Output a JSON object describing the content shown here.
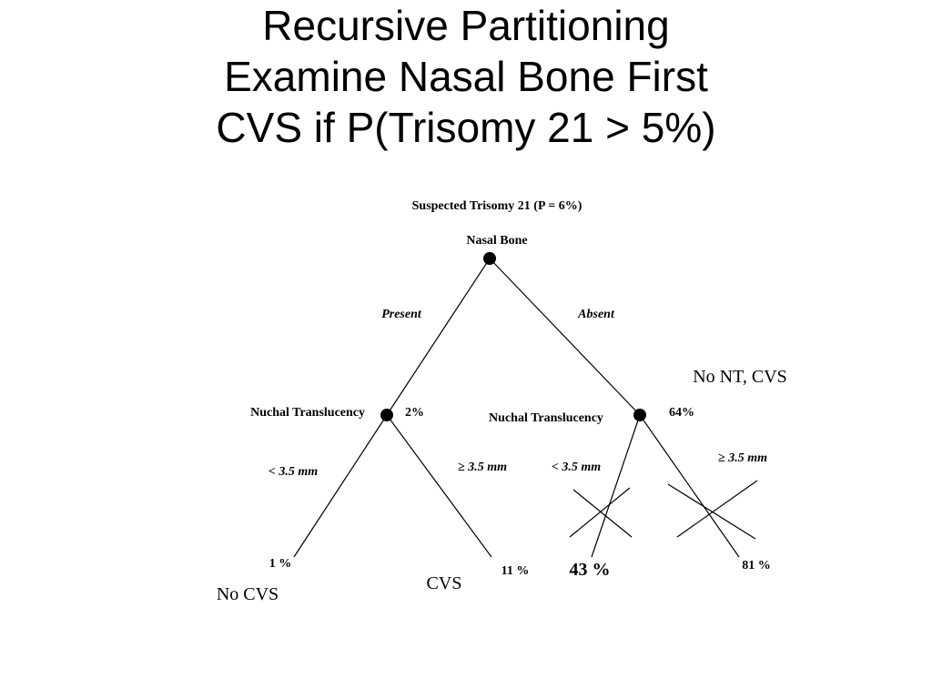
{
  "title_lines": [
    "Recursive Partitioning",
    "Examine Nasal Bone First",
    "CVS if P(Trisomy 21 > 5%)"
  ],
  "tree": {
    "header": "Suspected Trisomy 21 (P = 6%)",
    "root_label": "Nasal Bone",
    "branch_present": "Present",
    "branch_absent": "Absent",
    "left_node_label": "Nuchal Translucency",
    "left_node_prob": "2%",
    "right_node_label": "Nuchal Translucency",
    "right_node_prob": "64%",
    "right_node_decision": "No NT, CVS",
    "lt_label_left": "< 3.5 mm",
    "ge_label_left": "≥ 3.5 mm",
    "lt_label_right": "< 3.5 mm",
    "ge_label_right": "≥ 3.5 mm",
    "leaf_1": "1 %",
    "leaf_2": "11 %",
    "leaf_3": "43 %",
    "leaf_4": "81 %",
    "decision_no_cvs": "No CVS",
    "decision_cvs": "CVS"
  }
}
